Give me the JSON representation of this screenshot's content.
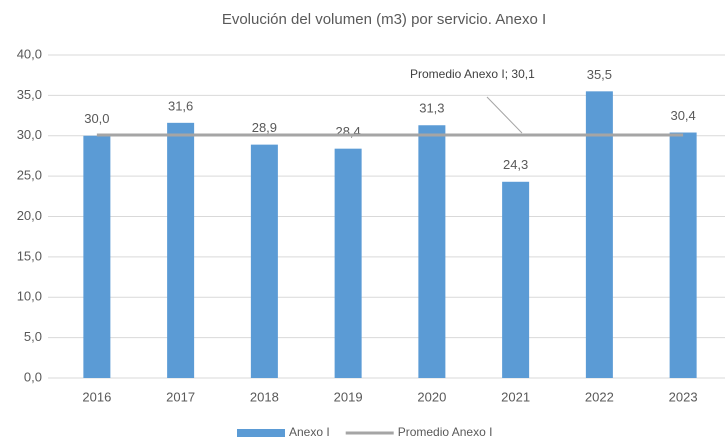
{
  "chart_data": {
    "type": "bar",
    "title": "Evolución del volumen (m3) por servicio. Anexo I",
    "categories": [
      "2016",
      "2017",
      "2018",
      "2019",
      "2020",
      "2021",
      "2022",
      "2023"
    ],
    "series": [
      {
        "name": "Anexo I",
        "type": "bar",
        "color": "#5b9bd5",
        "values": [
          30.0,
          31.6,
          28.9,
          28.4,
          31.3,
          24.3,
          35.5,
          30.4
        ],
        "value_labels": [
          "30,0",
          "31,6",
          "28,9",
          "28,4",
          "31,3",
          "24,3",
          "35,5",
          "30,4"
        ]
      },
      {
        "name": "Promedio Anexo I",
        "type": "line",
        "color": "#a5a5a5",
        "values": [
          30.1,
          30.1,
          30.1,
          30.1,
          30.1,
          30.1,
          30.1,
          30.1
        ]
      }
    ],
    "annotation": "Promedio Anexo I; 30,1",
    "ylim": [
      0,
      40
    ],
    "yticks": [
      {
        "value": 0,
        "label": "0,0"
      },
      {
        "value": 5,
        "label": "5,0"
      },
      {
        "value": 10,
        "label": "10,0"
      },
      {
        "value": 15,
        "label": "15,0"
      },
      {
        "value": 20,
        "label": "20,0"
      },
      {
        "value": 25,
        "label": "25,0"
      },
      {
        "value": 30,
        "label": "30,0"
      },
      {
        "value": 35,
        "label": "35,0"
      },
      {
        "value": 40,
        "label": "40,0"
      }
    ],
    "grid": true,
    "legend": "bottom"
  }
}
